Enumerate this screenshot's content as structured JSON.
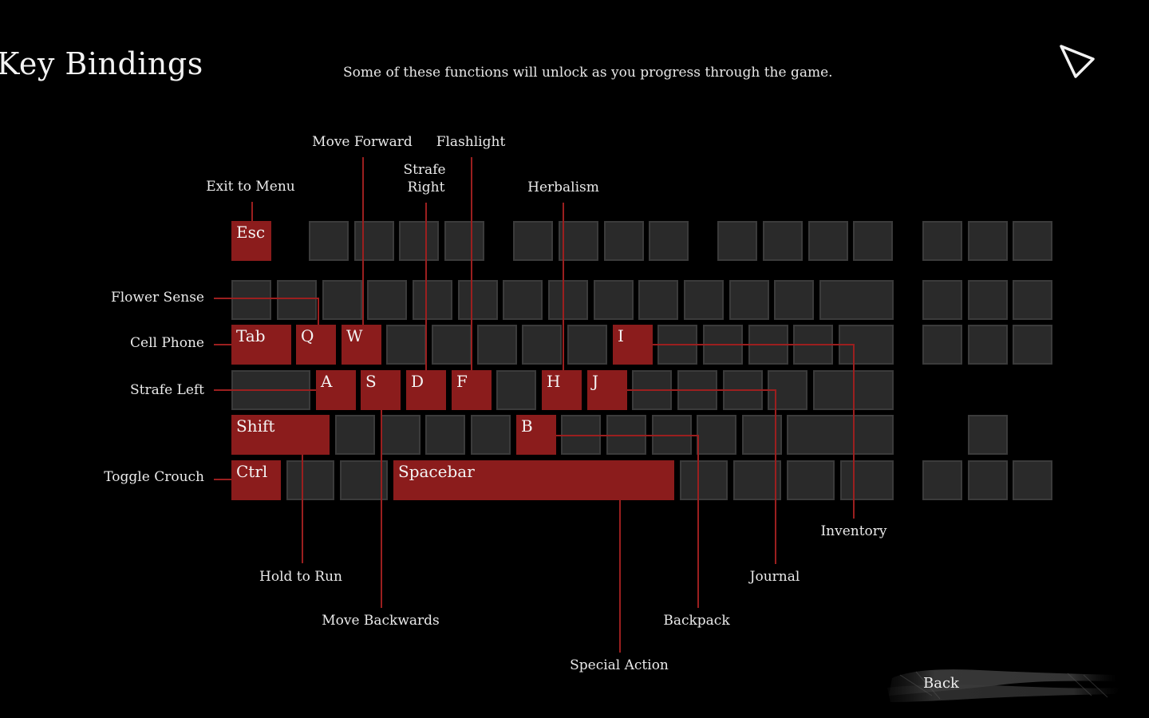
{
  "header": {
    "title": "Key Bindings",
    "subtitle": "Some of these functions will unlock as you progress through the game."
  },
  "keys": {
    "esc": "Esc",
    "tab": "Tab",
    "q": "Q",
    "w": "W",
    "i": "I",
    "a": "A",
    "s": "S",
    "d": "D",
    "f": "F",
    "h": "H",
    "j": "J",
    "shift": "Shift",
    "b": "B",
    "ctrl": "Ctrl",
    "spacebar": "Spacebar"
  },
  "callouts": {
    "exit_to_menu": "Exit to Menu",
    "move_forward": "Move Forward",
    "flashlight": "Flashlight",
    "strafe_right_1": "Strafe",
    "strafe_right_2": "Right",
    "herbalism": "Herbalism",
    "flower_sense": "Flower Sense",
    "cell_phone": "Cell Phone",
    "strafe_left": "Strafe Left",
    "toggle_crouch": "Toggle Crouch",
    "inventory": "Inventory",
    "journal": "Journal",
    "hold_to_run": "Hold to Run",
    "move_backwards": "Move Backwards",
    "backpack": "Backpack",
    "special_action": "Special Action"
  },
  "footer": {
    "back_label": "Back"
  },
  "colors": {
    "accent": "#8b1c1c",
    "key_idle": "#2a2a2a",
    "line": "#9b1f1f"
  }
}
